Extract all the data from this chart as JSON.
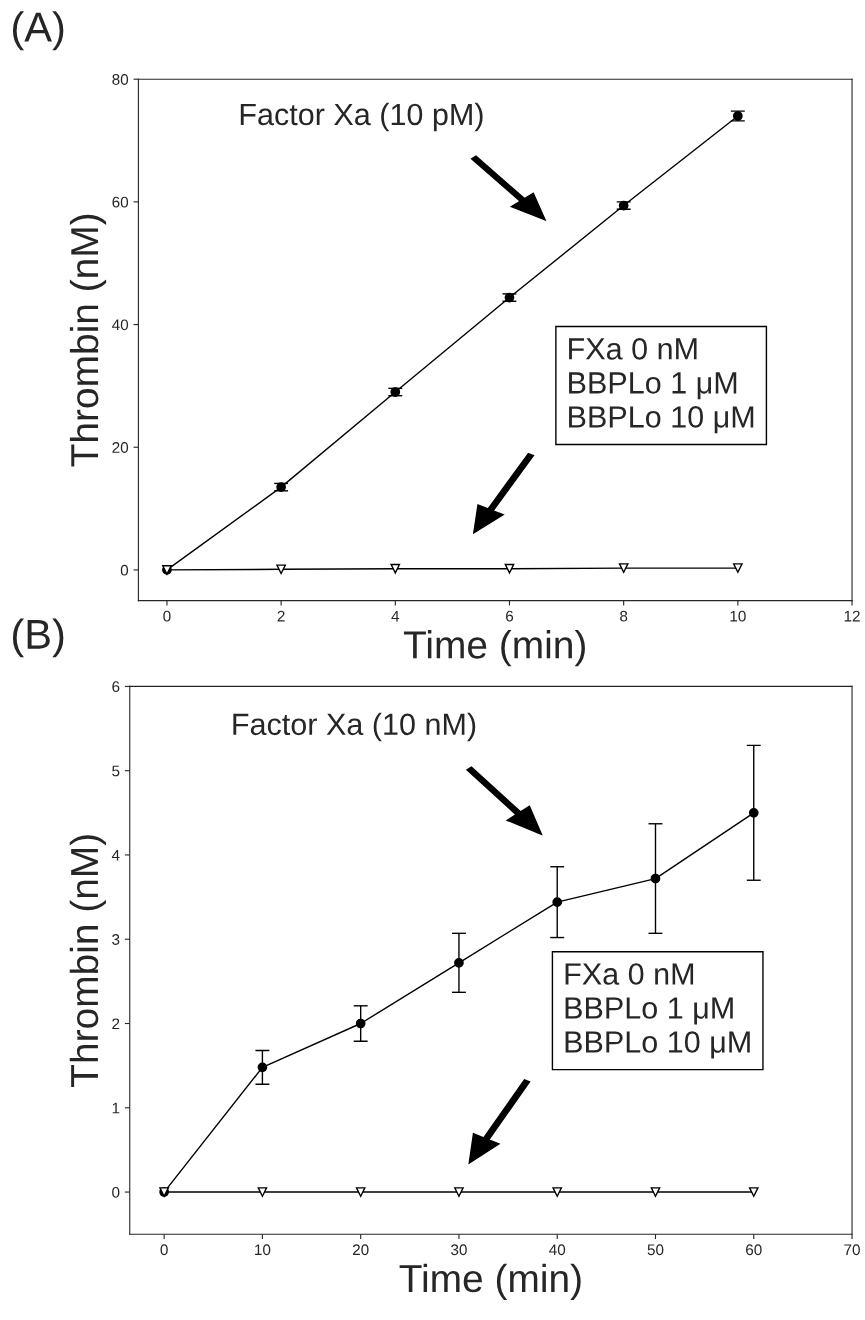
{
  "chart_data": [
    {
      "type": "line",
      "title": "(A)",
      "xlabel": "Time (min)",
      "ylabel": "Thrombin (nM)",
      "x": [
        0,
        2,
        4,
        6,
        8,
        10
      ],
      "series": [
        {
          "color": "#000000",
          "marker": "circle",
          "values": [
            0,
            13.5,
            29,
            44.4,
            59.4,
            74
          ],
          "errors": [
            null,
            0.6,
            0.6,
            0.6,
            0.6,
            0.8
          ]
        },
        {
          "color": "#000000",
          "marker": "triangle",
          "values": [
            0,
            0.1,
            0.2,
            0.2,
            0.3,
            0.3
          ]
        }
      ],
      "xlim": [
        -0.5,
        12
      ],
      "xticks": [
        0,
        2,
        4,
        6,
        8,
        10,
        12
      ],
      "ylim": [
        -5,
        80
      ],
      "yticks": [
        0,
        20,
        40,
        60,
        80
      ],
      "annotations": [
        "Factor Xa (10 pM)",
        "FXa 0 nM\nBBPLo 1 μM\nBBPLo 10 μM"
      ],
      "grid": false,
      "legend": false
    },
    {
      "type": "line",
      "title": "(B)",
      "xlabel": "Time (min)",
      "ylabel": "Thrombin (nM)",
      "x": [
        0,
        10,
        20,
        30,
        40,
        50,
        60
      ],
      "series": [
        {
          "color": "#000000",
          "marker": "circle",
          "values": [
            0,
            1.48,
            2.0,
            2.72,
            3.44,
            3.72,
            4.5
          ],
          "errors": [
            null,
            0.2,
            0.21,
            0.35,
            0.42,
            0.65,
            0.8
          ]
        },
        {
          "color": "#000000",
          "marker": "triangle",
          "values": [
            0,
            0,
            0,
            0,
            0,
            0,
            0
          ]
        }
      ],
      "xlim": [
        -3.5,
        70
      ],
      "xticks": [
        0,
        10,
        20,
        30,
        40,
        50,
        60,
        70
      ],
      "ylim": [
        -0.5,
        6
      ],
      "yticks": [
        0,
        1,
        2,
        3,
        4,
        5,
        6
      ],
      "annotations": [
        "Factor Xa (10 nM)",
        "FXa 0 nM\nBBPLo 1 μM\nBBPLo 10 μM"
      ],
      "grid": false,
      "legend": false
    }
  ]
}
